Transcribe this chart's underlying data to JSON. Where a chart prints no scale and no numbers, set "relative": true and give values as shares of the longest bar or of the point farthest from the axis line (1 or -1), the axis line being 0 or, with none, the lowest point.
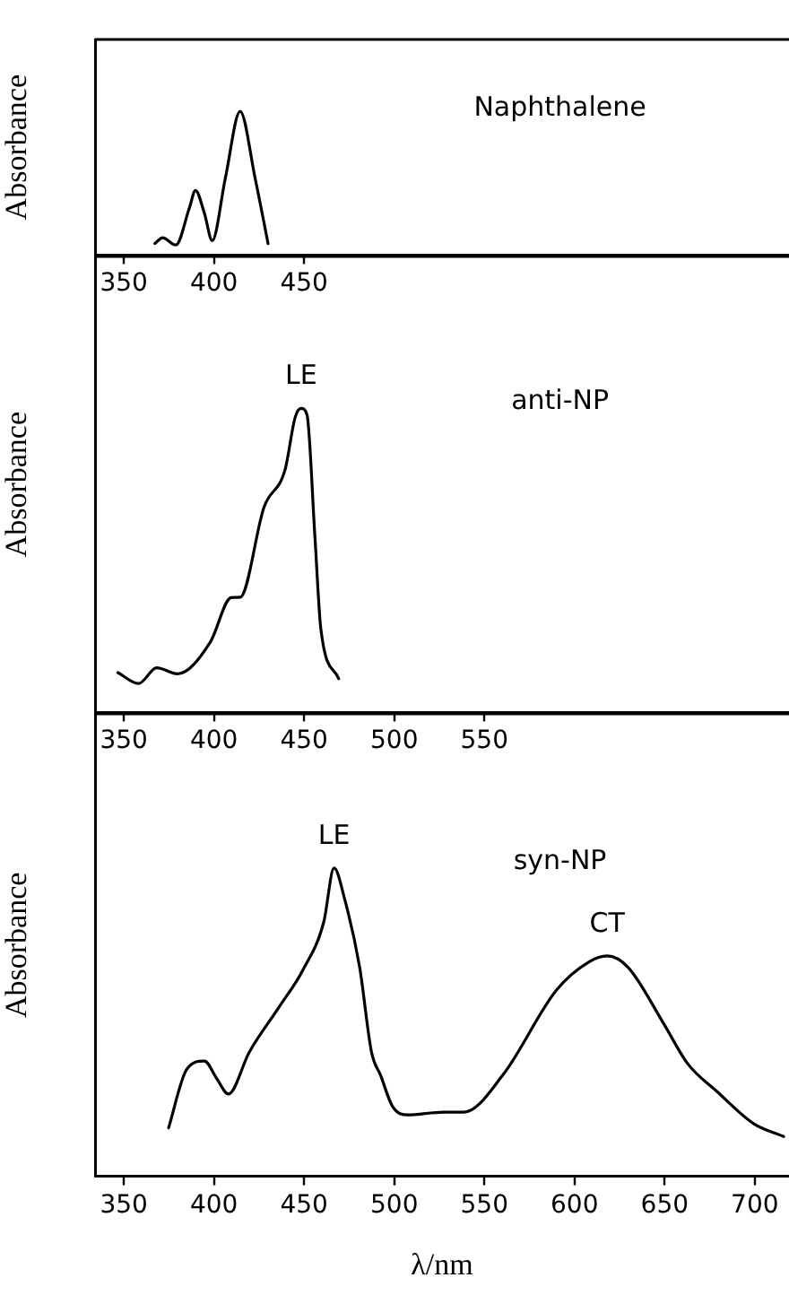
{
  "chart_data": [
    {
      "type": "line",
      "relative": true,
      "ylabel": "Absorbance",
      "annotations": [
        "Naphthalene"
      ],
      "xlim": [
        334,
        719
      ],
      "xticks": [
        350,
        400,
        450
      ],
      "series": [
        {
          "color": "#000000",
          "x": [
            367.2,
            371.5,
            378.8,
            386.4,
            389.7,
            394.7,
            399,
            406.3,
            414.5,
            422.8,
            430
          ],
          "values": [
            0.08,
            0.12,
            0.07,
            0.33,
            0.45,
            0.29,
            0.1,
            0.535,
            1,
            0.535,
            0.08
          ]
        }
      ]
    },
    {
      "type": "line",
      "relative": true,
      "ylabel": "Absorbance",
      "annotations": [
        {
          "text": "LE",
          "x": 448.3,
          "y": 1
        },
        "anti-NP"
      ],
      "xlim": [
        334,
        719
      ],
      "xticks": [
        350,
        400,
        450,
        500,
        550
      ],
      "series": [
        {
          "color": "#000000",
          "x": [
            346.7,
            358.2,
            368.2,
            379.8,
            398,
            409.6,
            414.5,
            427.8,
            439.4,
            445,
            448.3,
            451.6,
            456,
            459.3,
            469.2
          ],
          "values": [
            0.131,
            0.095,
            0.147,
            0.127,
            0.232,
            0.378,
            0.379,
            0.676,
            0.798,
            0.97,
            1,
            0.979,
            0.576,
            0.273,
            0.111
          ]
        }
      ]
    },
    {
      "type": "line",
      "relative": true,
      "ylabel": "Absorbance",
      "xlabel": "λ/nm",
      "annotations": [
        {
          "text": "LE",
          "x": 466.6,
          "y": 1
        },
        "syn-NP",
        {
          "text": "CT",
          "x": 618.1,
          "y": 0.715
        }
      ],
      "xlim": [
        334,
        719
      ],
      "xticks": [
        350,
        400,
        450,
        500,
        550,
        600,
        650,
        700
      ],
      "series": [
        {
          "color": "#000000",
          "x": [
            374.8,
            384.8,
            394.7,
            401.3,
            408,
            419.5,
            436.1,
            449.3,
            460.9,
            466.6,
            472.5,
            480.8,
            487.4,
            492.4,
            499,
            507.3,
            527.2,
            538.7,
            560.2,
            590,
            608.2,
            618.1,
            629.7,
            649.6,
            662.8,
            679.4,
            699.3,
            716
          ],
          "values": [
            0.157,
            0.346,
            0.374,
            0.319,
            0.267,
            0.402,
            0.549,
            0.669,
            0.825,
            1,
            0.899,
            0.678,
            0.402,
            0.328,
            0.227,
            0.199,
            0.208,
            0.208,
            0.328,
            0.604,
            0.696,
            0.715,
            0.678,
            0.494,
            0.365,
            0.273,
            0.171,
            0.129
          ]
        }
      ]
    }
  ]
}
